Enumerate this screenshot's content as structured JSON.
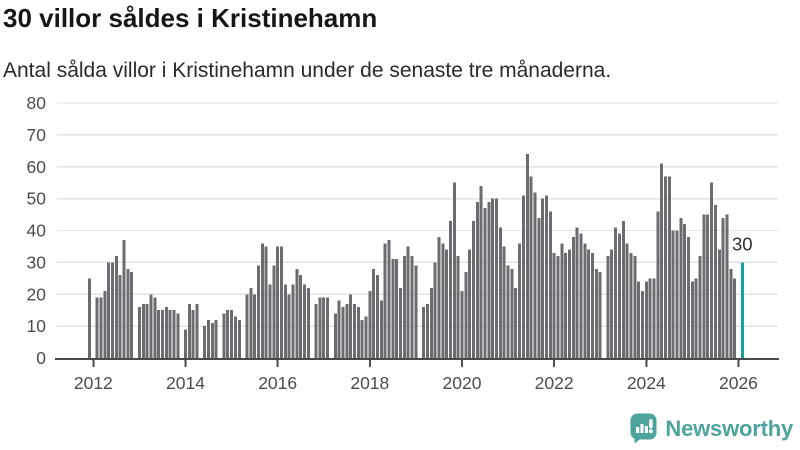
{
  "chart_data": {
    "type": "bar",
    "title": "30 villor såldes i Kristinehamn",
    "subtitle": "Antal sålda villor i Kristinehamn under de senaste tre månaderna.",
    "x_start": "2011-12",
    "x_frequency": "monthly",
    "values": [
      25,
      0,
      19,
      19,
      21,
      30,
      30,
      32,
      26,
      37,
      28,
      27,
      0,
      16,
      17,
      17,
      20,
      19,
      15,
      15,
      16,
      15,
      15,
      14,
      0,
      9,
      17,
      15,
      17,
      0,
      10,
      12,
      11,
      12,
      0,
      14,
      15,
      15,
      13,
      12,
      0,
      20,
      22,
      20,
      29,
      36,
      35,
      23,
      29,
      35,
      35,
      23,
      20,
      23,
      28,
      26,
      23,
      22,
      0,
      17,
      19,
      19,
      19,
      0,
      14,
      18,
      16,
      17,
      20,
      17,
      16,
      12,
      13,
      21,
      28,
      26,
      18,
      36,
      37,
      31,
      31,
      22,
      32,
      35,
      32,
      29,
      0,
      16,
      17,
      22,
      30,
      38,
      36,
      34,
      43,
      55,
      32,
      21,
      27,
      34,
      43,
      49,
      54,
      47,
      49,
      50,
      50,
      41,
      35,
      29,
      28,
      22,
      36,
      51,
      64,
      57,
      52,
      44,
      50,
      51,
      46,
      33,
      32,
      36,
      33,
      34,
      38,
      41,
      39,
      36,
      34,
      33,
      28,
      27,
      0,
      32,
      34,
      41,
      39,
      43,
      36,
      33,
      32,
      24,
      21,
      24,
      25,
      25,
      46,
      61,
      57,
      57,
      40,
      40,
      44,
      42,
      38,
      24,
      25,
      32,
      45,
      45,
      55,
      48,
      34,
      44,
      45,
      28,
      25,
      0,
      30
    ],
    "highlight_last": true,
    "annotation": {
      "label": "30"
    },
    "ylim": [
      0,
      80
    ],
    "yticks": [
      0,
      10,
      20,
      30,
      40,
      50,
      60,
      70,
      80
    ],
    "x_tick_years": [
      2012,
      2014,
      2016,
      2018,
      2020,
      2022,
      2024,
      2026
    ],
    "grid": true,
    "legend": "none",
    "colors": {
      "bar": "#6b6b70",
      "highlight": "#12a2a0",
      "grid": "#e3e3e5",
      "axis": "#4a4a4d",
      "tick_text": "#4c4c4f",
      "annotation_text": "#2f2f2f"
    }
  },
  "footer": {
    "brand": "Newsworthy",
    "brand_color": "#4da49c"
  }
}
